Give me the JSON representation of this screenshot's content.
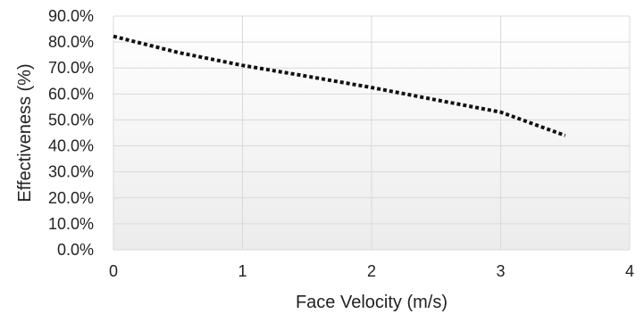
{
  "chart_data": {
    "type": "line",
    "title": "",
    "xlabel": "Face Velocity (m/s)",
    "ylabel": "Effectiveness (%)",
    "xlim": [
      0,
      4
    ],
    "ylim": [
      0,
      90
    ],
    "x_ticks": [
      0,
      1,
      2,
      3,
      4
    ],
    "x_tick_labels": [
      "0",
      "1",
      "2",
      "3",
      "4"
    ],
    "y_ticks": [
      0,
      10,
      20,
      30,
      40,
      50,
      60,
      70,
      80,
      90
    ],
    "y_tick_labels": [
      "0.0%",
      "10.0%",
      "20.0%",
      "30.0%",
      "40.0%",
      "50.0%",
      "60.0%",
      "70.0%",
      "80.0%",
      "90.0%"
    ],
    "grid": true,
    "line_style": "dotted",
    "colors": {
      "line": "#111111",
      "grid": "#d9d9d9",
      "plot_bg_top": "#ffffff",
      "plot_bg_bottom": "#ececec"
    },
    "series": [
      {
        "x": [
          0,
          0.5,
          1,
          1.5,
          2,
          2.5,
          3,
          3.5
        ],
        "values": [
          82.2,
          76.0,
          71.0,
          66.8,
          62.5,
          57.7,
          53.0,
          44.0
        ]
      }
    ]
  }
}
